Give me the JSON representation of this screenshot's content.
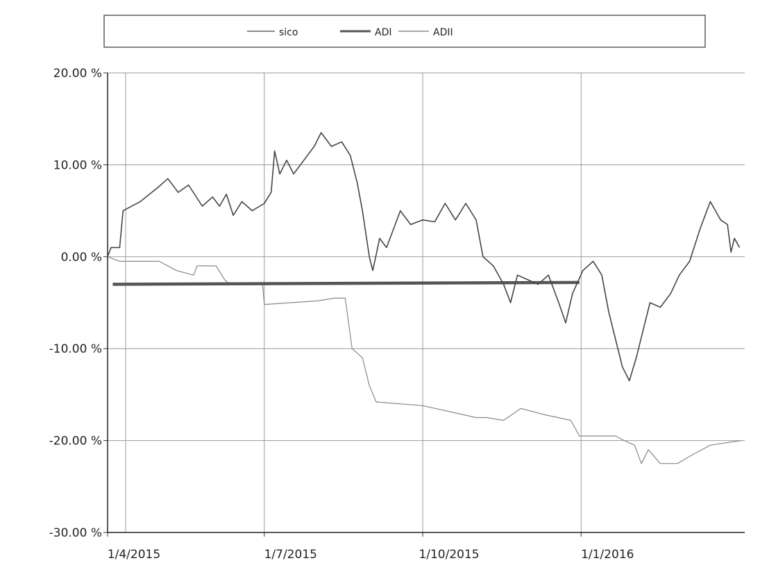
{
  "chart_data": {
    "type": "line",
    "x_axis": {
      "type": "date",
      "range": [
        "2015-04-01",
        "2016-04-05"
      ],
      "ticks": [
        {
          "date": "2015-04-01",
          "label": "1/4/2015"
        },
        {
          "date": "2015-07-01",
          "label": "1/7/2015"
        },
        {
          "date": "2015-10-01",
          "label": "1/10/2015"
        },
        {
          "date": "2016-01-01",
          "label": "1/1/2016"
        }
      ]
    },
    "y_axis": {
      "ylim": [
        -30,
        20
      ],
      "ticks": [
        {
          "value": 20,
          "label": "20.00 %"
        },
        {
          "value": 10,
          "label": "10.00 %"
        },
        {
          "value": 0,
          "label": "0.00 %"
        },
        {
          "value": -10,
          "label": "-10.00 %"
        },
        {
          "value": -20,
          "label": "-20.00 %"
        },
        {
          "value": -30,
          "label": "-30.00 %"
        }
      ]
    },
    "grid": true,
    "legend": "top-center",
    "series": [
      {
        "name": "sico",
        "color": "#444444",
        "points": [
          [
            "2015-04-01",
            0.0
          ],
          [
            "2015-04-03",
            1.0
          ],
          [
            "2015-04-08",
            1.0
          ],
          [
            "2015-04-10",
            5.0
          ],
          [
            "2015-04-20",
            6.0
          ],
          [
            "2015-04-30",
            7.5
          ],
          [
            "2015-05-06",
            8.5
          ],
          [
            "2015-05-12",
            7.0
          ],
          [
            "2015-05-18",
            7.8
          ],
          [
            "2015-05-26",
            5.5
          ],
          [
            "2015-06-01",
            6.5
          ],
          [
            "2015-06-05",
            5.5
          ],
          [
            "2015-06-09",
            6.8
          ],
          [
            "2015-06-13",
            4.5
          ],
          [
            "2015-06-18",
            6.0
          ],
          [
            "2015-06-24",
            5.0
          ],
          [
            "2015-07-01",
            5.8
          ],
          [
            "2015-07-05",
            7.0
          ],
          [
            "2015-07-07",
            11.5
          ],
          [
            "2015-07-10",
            9.0
          ],
          [
            "2015-07-14",
            10.5
          ],
          [
            "2015-07-18",
            9.0
          ],
          [
            "2015-07-24",
            10.5
          ],
          [
            "2015-07-30",
            12.0
          ],
          [
            "2015-08-03",
            13.5
          ],
          [
            "2015-08-09",
            12.0
          ],
          [
            "2015-08-15",
            12.5
          ],
          [
            "2015-08-20",
            11.0
          ],
          [
            "2015-08-24",
            8.0
          ],
          [
            "2015-08-27",
            5.0
          ],
          [
            "2015-08-31",
            0.0
          ],
          [
            "2015-09-02",
            -1.5
          ],
          [
            "2015-09-06",
            2.0
          ],
          [
            "2015-09-10",
            1.0
          ],
          [
            "2015-09-14",
            3.0
          ],
          [
            "2015-09-18",
            5.0
          ],
          [
            "2015-09-24",
            3.5
          ],
          [
            "2015-10-01",
            4.0
          ],
          [
            "2015-10-08",
            3.8
          ],
          [
            "2015-10-14",
            5.8
          ],
          [
            "2015-10-20",
            4.0
          ],
          [
            "2015-10-26",
            5.8
          ],
          [
            "2015-11-01",
            4.0
          ],
          [
            "2015-11-05",
            0.0
          ],
          [
            "2015-11-11",
            -1.0
          ],
          [
            "2015-11-17",
            -3.0
          ],
          [
            "2015-11-21",
            -5.0
          ],
          [
            "2015-11-25",
            -2.0
          ],
          [
            "2015-12-01",
            -2.5
          ],
          [
            "2015-12-07",
            -3.0
          ],
          [
            "2015-12-13",
            -2.0
          ],
          [
            "2015-12-19",
            -5.0
          ],
          [
            "2015-12-23",
            -7.2
          ],
          [
            "2015-12-27",
            -4.0
          ],
          [
            "2016-01-02",
            -1.5
          ],
          [
            "2016-01-08",
            -0.5
          ],
          [
            "2016-01-13",
            -2.0
          ],
          [
            "2016-01-17",
            -6.0
          ],
          [
            "2016-01-21",
            -9.0
          ],
          [
            "2016-01-25",
            -12.0
          ],
          [
            "2016-01-29",
            -13.5
          ],
          [
            "2016-02-02",
            -11.0
          ],
          [
            "2016-02-06",
            -8.0
          ],
          [
            "2016-02-10",
            -5.0
          ],
          [
            "2016-02-16",
            -5.5
          ],
          [
            "2016-02-22",
            -4.0
          ],
          [
            "2016-02-27",
            -2.0
          ],
          [
            "2016-03-04",
            -0.5
          ],
          [
            "2016-03-10",
            3.0
          ],
          [
            "2016-03-16",
            6.0
          ],
          [
            "2016-03-22",
            4.0
          ],
          [
            "2016-03-26",
            3.5
          ],
          [
            "2016-03-28",
            0.5
          ],
          [
            "2016-03-30",
            2.0
          ],
          [
            "2016-04-02",
            1.0
          ]
        ]
      },
      {
        "name": "ADI",
        "color": "#555555",
        "points": [
          [
            "2015-04-04",
            -3.0
          ],
          [
            "2015-12-31",
            -2.8
          ]
        ]
      },
      {
        "name": "ADII",
        "color": "#888888",
        "points": [
          [
            "2015-04-01",
            0.0
          ],
          [
            "2015-04-08",
            -0.5
          ],
          [
            "2015-05-01",
            -0.5
          ],
          [
            "2015-05-11",
            -1.5
          ],
          [
            "2015-05-21",
            -2.0
          ],
          [
            "2015-05-23",
            -1.0
          ],
          [
            "2015-06-03",
            -1.0
          ],
          [
            "2015-06-08",
            -2.5
          ],
          [
            "2015-06-11",
            -3.0
          ],
          [
            "2015-06-30",
            -3.0
          ],
          [
            "2015-07-01",
            -5.2
          ],
          [
            "2015-08-01",
            -4.8
          ],
          [
            "2015-08-11",
            -4.5
          ],
          [
            "2015-08-17",
            -4.5
          ],
          [
            "2015-08-21",
            -10.0
          ],
          [
            "2015-08-27",
            -11.0
          ],
          [
            "2015-08-31",
            -14.0
          ],
          [
            "2015-09-04",
            -15.8
          ],
          [
            "2015-10-01",
            -16.2
          ],
          [
            "2015-11-01",
            -17.5
          ],
          [
            "2015-11-07",
            -17.5
          ],
          [
            "2015-11-17",
            -17.8
          ],
          [
            "2015-11-27",
            -16.5
          ],
          [
            "2015-12-11",
            -17.2
          ],
          [
            "2015-12-26",
            -17.8
          ],
          [
            "2015-12-31",
            -19.5
          ],
          [
            "2016-01-21",
            -19.5
          ],
          [
            "2016-01-26",
            -20.0
          ],
          [
            "2016-02-01",
            -20.5
          ],
          [
            "2016-02-05",
            -22.5
          ],
          [
            "2016-02-09",
            -21.0
          ],
          [
            "2016-02-16",
            -22.5
          ],
          [
            "2016-02-26",
            -22.5
          ],
          [
            "2016-03-06",
            -21.5
          ],
          [
            "2016-03-16",
            -20.5
          ],
          [
            "2016-04-03",
            -20.0
          ]
        ]
      }
    ]
  }
}
